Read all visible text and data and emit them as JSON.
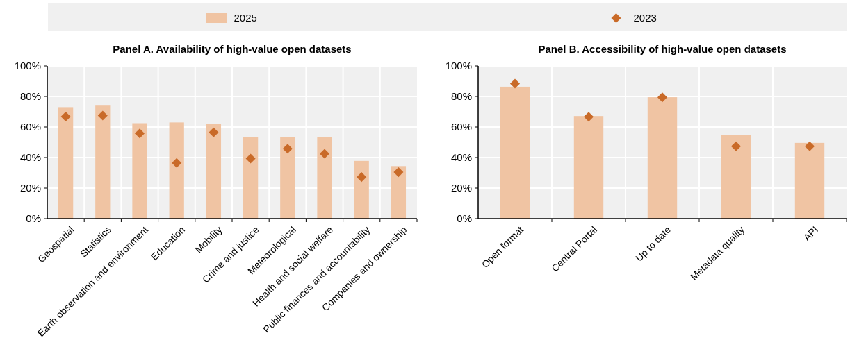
{
  "chart_data": [
    {
      "type": "bar",
      "title": "Panel A. Availability of high-value open datasets",
      "categories": [
        "Geospatial",
        "Statistics",
        "Earth observation and environment",
        "Education",
        "Mobility",
        "Crime and justice",
        "Meteorological",
        "Health and social welfare",
        "Public finances and accountability",
        "Companies and ownership"
      ],
      "series": [
        {
          "name": "2025",
          "color": "#f0c4a3",
          "values": [
            73,
            74,
            62.5,
            63,
            62,
            53.5,
            53.5,
            53.3,
            37.8,
            34.4
          ]
        },
        {
          "name": "2023",
          "type": "scatter",
          "color": "#c96a28",
          "marker": "diamond",
          "values": [
            66.8,
            67.5,
            55.8,
            36.5,
            56.5,
            39.3,
            45.8,
            42.5,
            27.2,
            30.4
          ]
        }
      ],
      "ylim": [
        0,
        100
      ],
      "yticks": [
        {
          "value": 0,
          "label": "0%"
        },
        {
          "value": 20,
          "label": "20%"
        },
        {
          "value": 40,
          "label": "40%"
        },
        {
          "value": 60,
          "label": "60%"
        },
        {
          "value": 80,
          "label": "80%"
        },
        {
          "value": 100,
          "label": "100%"
        }
      ],
      "grid": true,
      "legend": "top"
    },
    {
      "type": "bar",
      "title": "Panel B. Accessibility of high-value open datasets",
      "categories": [
        "Open format",
        "Central Portal",
        "Up to date",
        "Metadata quality",
        "API"
      ],
      "series": [
        {
          "name": "2025",
          "color": "#f0c4a3",
          "values": [
            86.4,
            67.2,
            79.5,
            54.9,
            49.6
          ]
        },
        {
          "name": "2023",
          "type": "scatter",
          "color": "#c96a28",
          "marker": "diamond",
          "values": [
            88.4,
            66.7,
            79.4,
            47.4,
            47.4
          ]
        }
      ],
      "ylim": [
        0,
        100
      ],
      "yticks": [
        {
          "value": 0,
          "label": "0%"
        },
        {
          "value": 20,
          "label": "20%"
        },
        {
          "value": 40,
          "label": "40%"
        },
        {
          "value": 60,
          "label": "60%"
        },
        {
          "value": 80,
          "label": "80%"
        },
        {
          "value": 100,
          "label": "100%"
        }
      ],
      "grid": true,
      "legend": "top"
    }
  ]
}
